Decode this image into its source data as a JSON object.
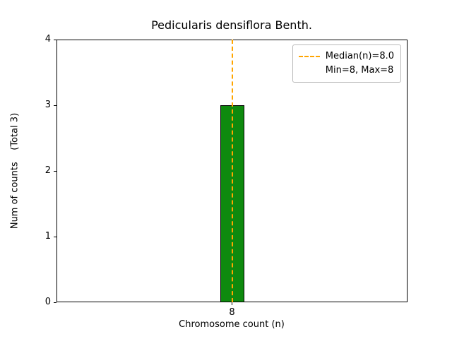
{
  "chart_data": {
    "type": "bar",
    "title": "Pedicularis densiflora Benth.",
    "xlabel": "Chromosome count (n)",
    "ylabel": "Num of counts    (Total 3)",
    "categories": [
      "8"
    ],
    "values": [
      3
    ],
    "xticks": [
      "8"
    ],
    "yticks": [
      0,
      1,
      2,
      3,
      4
    ],
    "ylim": [
      0,
      4
    ],
    "grid": false,
    "bar_color": "#0e8a0e",
    "bar_edge_color": "#000000",
    "median_line": {
      "x": 8,
      "color": "#ffa500",
      "style": "dashed",
      "label": "Median(n)=8.0"
    },
    "legend": {
      "position": "upper right",
      "entries": [
        {
          "label": "Median(n)=8.0",
          "swatch": "dashed-line",
          "color": "#ffa500"
        },
        {
          "label": "Min=8, Max=8",
          "swatch": "none"
        }
      ]
    }
  }
}
